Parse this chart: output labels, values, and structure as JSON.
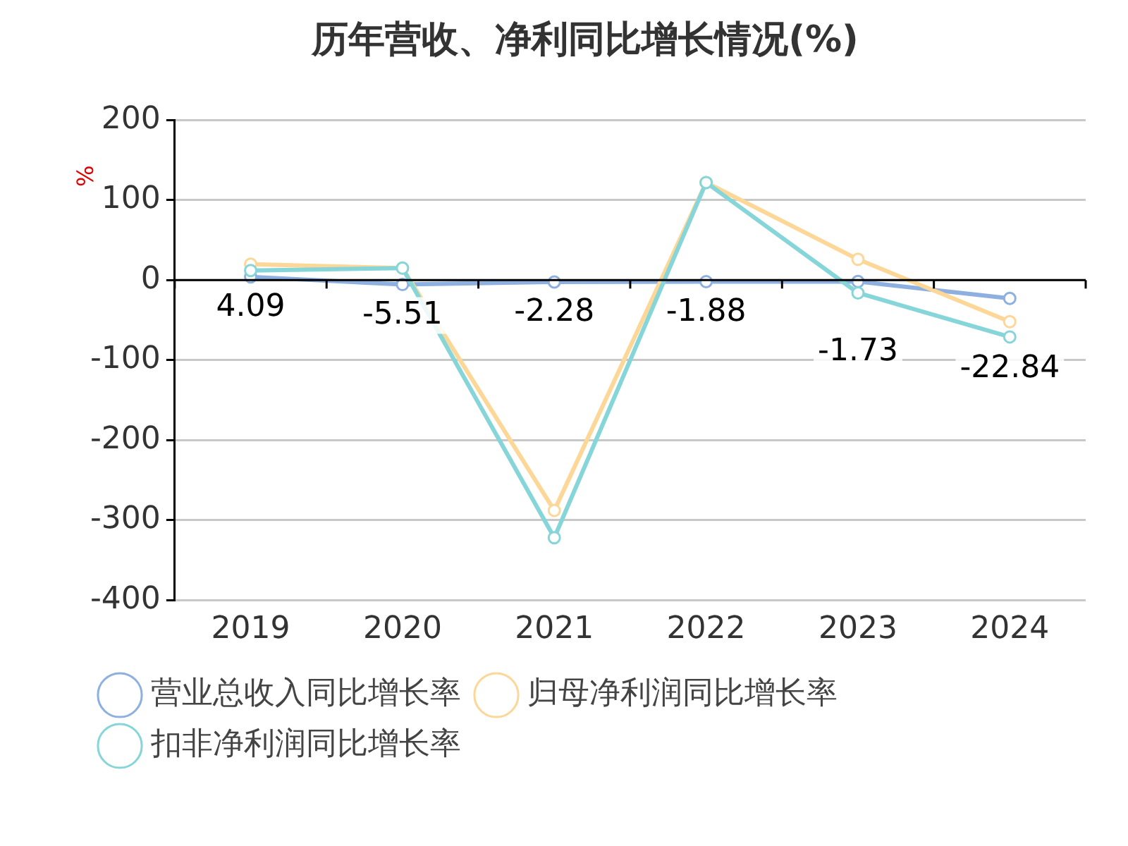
{
  "chart_data": {
    "type": "line",
    "title": "历年营收、净利同比增长情况(%)",
    "ylabel": "%",
    "categories": [
      "2019",
      "2020",
      "2021",
      "2022",
      "2023",
      "2024"
    ],
    "series": [
      {
        "name": "营业总收入同比增长率",
        "color": "#8eb0e0",
        "values": [
          4.09,
          -5.51,
          -2.28,
          -1.88,
          -1.73,
          -22.84
        ],
        "value_labels": [
          "4.09",
          "-5.51",
          "-2.28",
          "-1.88",
          "-1.73",
          "-22.84"
        ]
      },
      {
        "name": "归母净利润同比增长率",
        "color": "#fdd797",
        "values": [
          20,
          15,
          -288,
          122,
          26,
          -52
        ]
      },
      {
        "name": "扣非净利润同比增长率",
        "color": "#86d5d8",
        "values": [
          12,
          15,
          -322,
          122,
          -16,
          -71
        ]
      }
    ],
    "ylim": [
      -400,
      200
    ],
    "yticks": [
      -400,
      -300,
      -200,
      -100,
      0,
      100,
      200
    ],
    "grid": "y",
    "legend": "bottom",
    "marker": "circle",
    "line_style": "solid"
  }
}
